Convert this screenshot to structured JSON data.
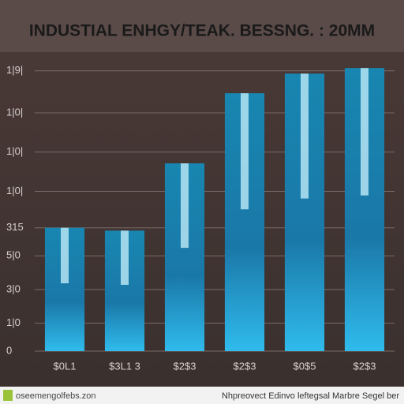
{
  "chart_data": {
    "type": "bar",
    "title": "INDUSTIAL ENHGY/TEAK. BESSNG. : 20MM",
    "categories": [
      "$0L1",
      "$3L1 3",
      "$2$3",
      "$2$3",
      "$0$5",
      "$2$3"
    ],
    "values": [
      44,
      43,
      67,
      92,
      99,
      101
    ],
    "color": "#1fa6d6",
    "ylim": [
      0,
      105
    ],
    "yticks": [
      {
        "value": 100,
        "label": "1|9|"
      },
      {
        "value": 85,
        "label": "1|0|"
      },
      {
        "value": 71,
        "label": "1|0|"
      },
      {
        "value": 57,
        "label": "1|0|"
      },
      {
        "value": 44,
        "label": "315"
      },
      {
        "value": 34,
        "label": "5|0"
      },
      {
        "value": 22,
        "label": "3|0"
      },
      {
        "value": 10,
        "label": "1|0"
      },
      0
    ],
    "grid": true
  },
  "footer": {
    "left": "oseemengolfebs.zon",
    "right": "Nhpreovect Edinvo leftegsal Marbre Segel ber"
  }
}
